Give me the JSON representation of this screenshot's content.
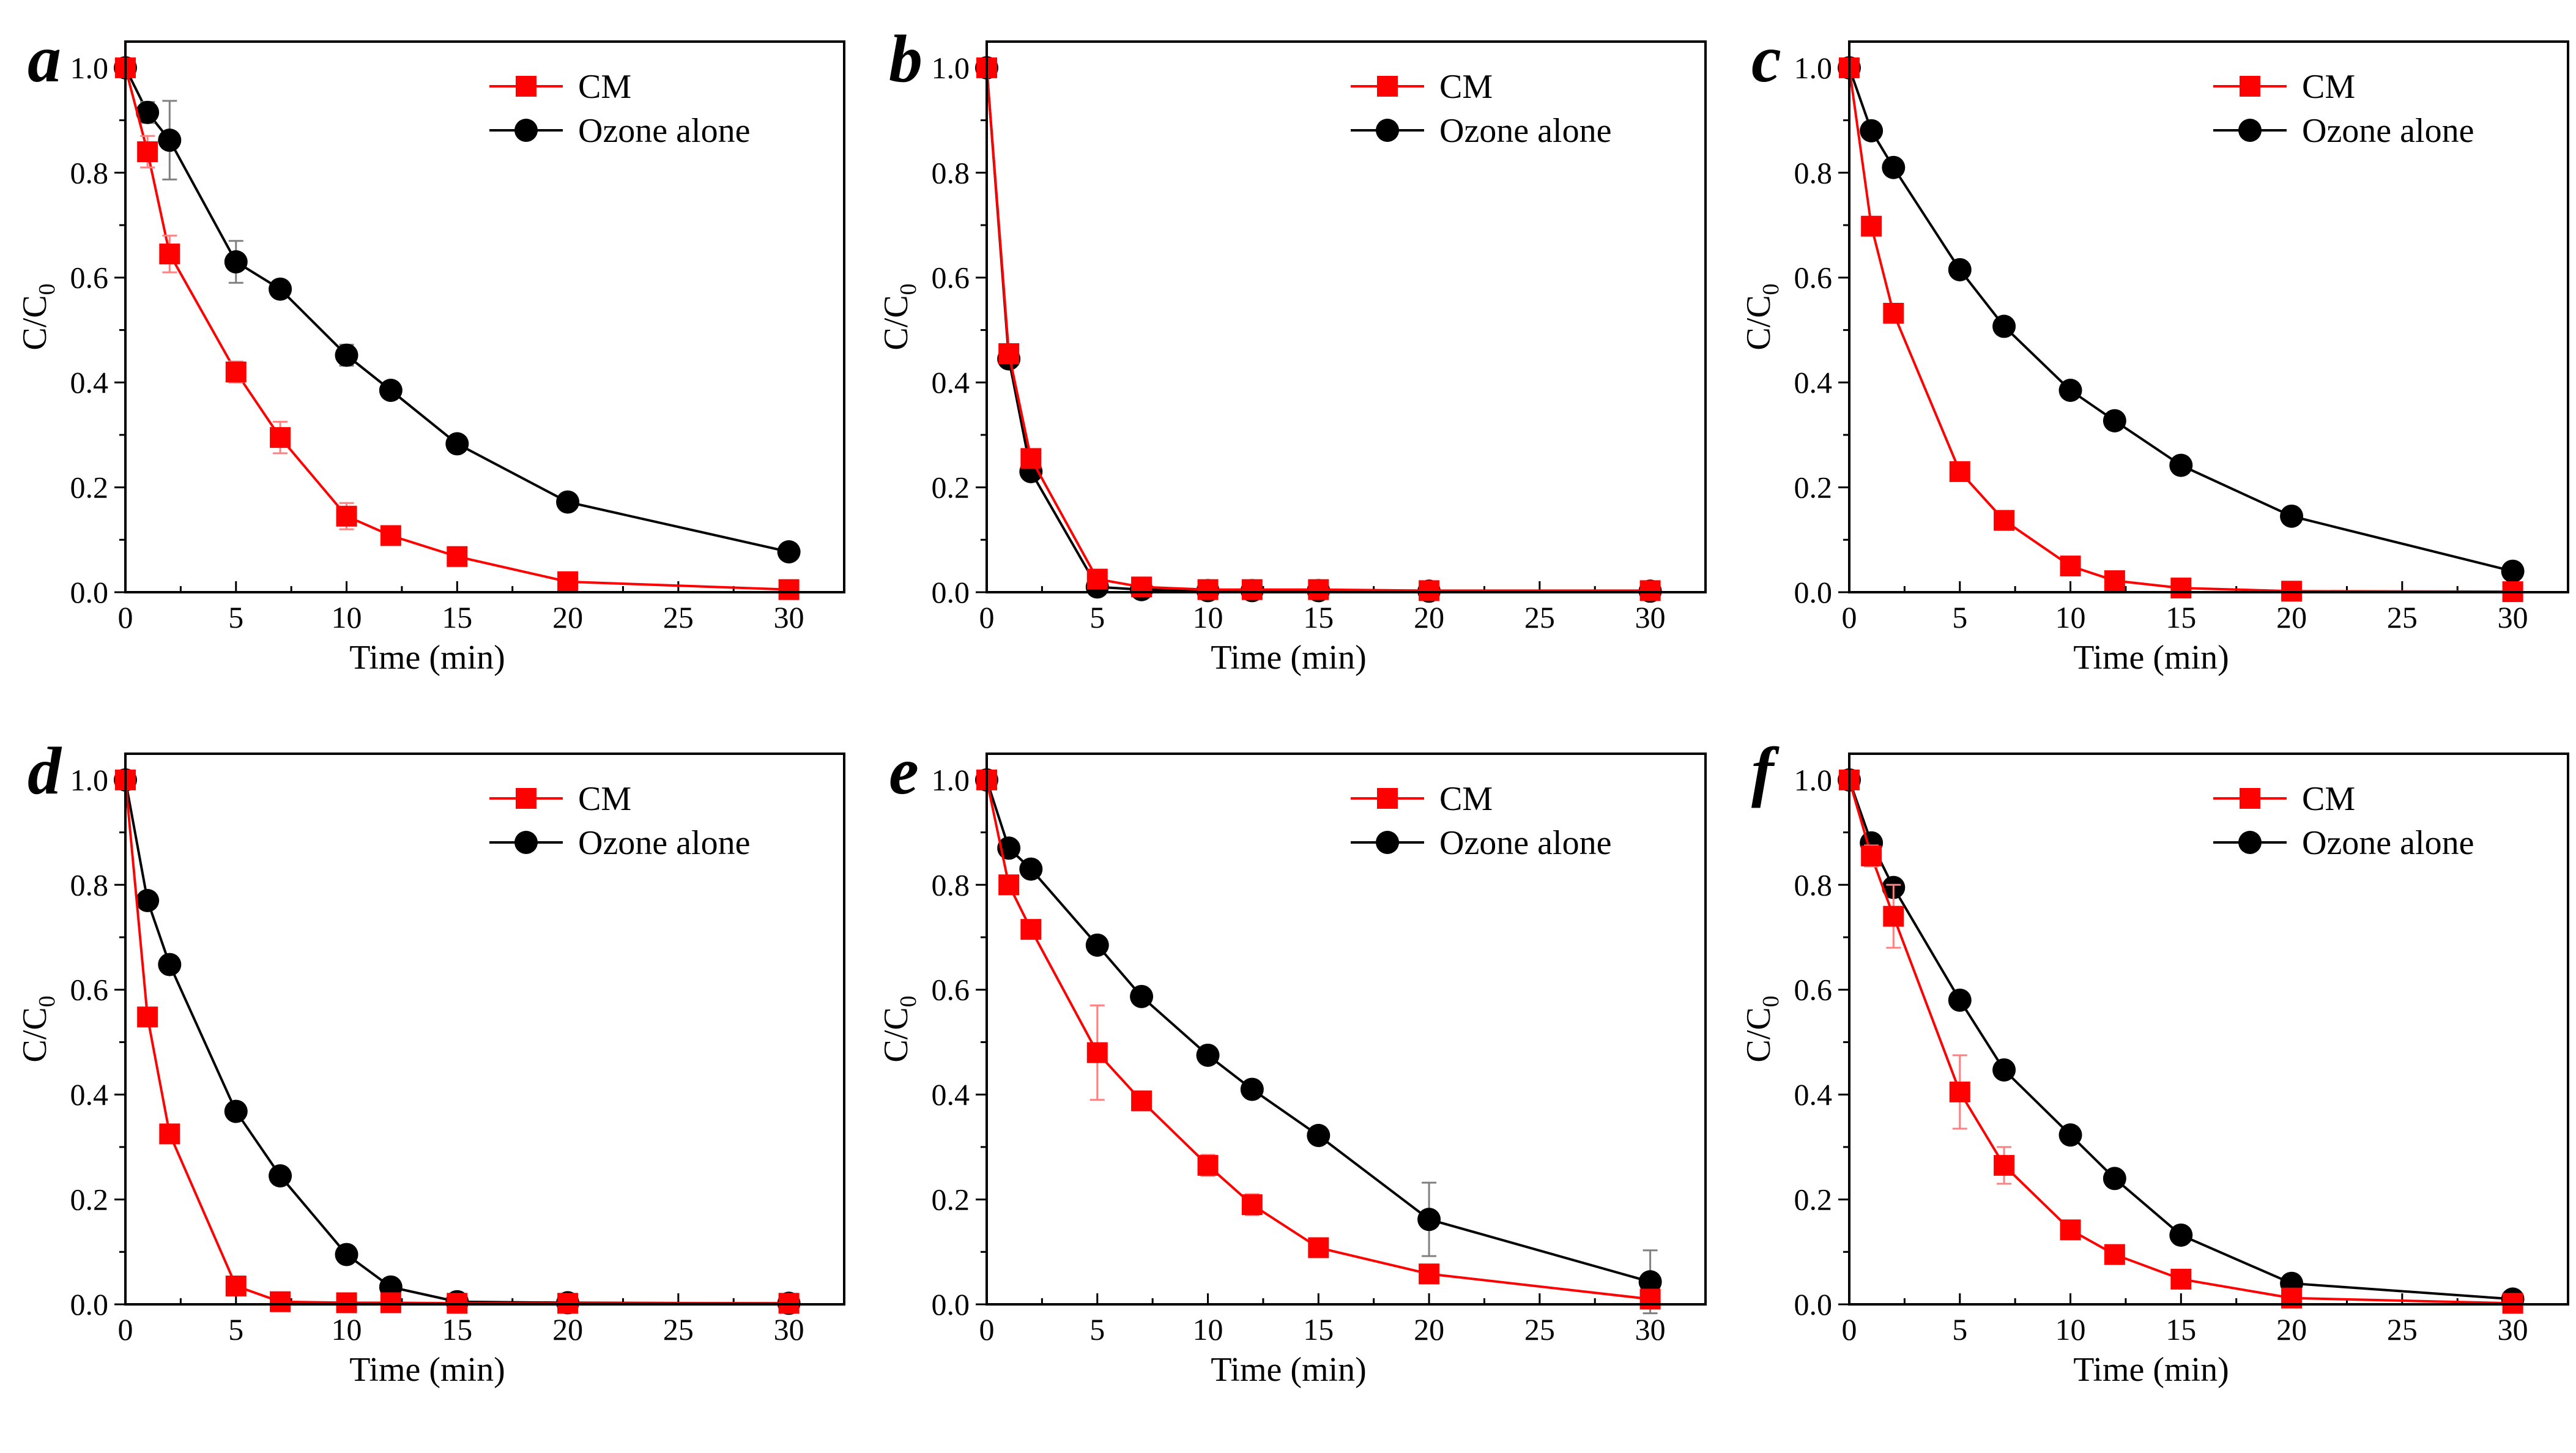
{
  "colors": {
    "cm": "#ff0000",
    "ozone": "#000000",
    "axis": "#000000",
    "error": "#ff8080"
  },
  "chart_data": [
    {
      "panel": "a",
      "type": "line",
      "xlabel": "Time (min)",
      "ylabel": "C/C0",
      "xlim": [
        0,
        32.5
      ],
      "ylim": [
        0,
        1.05
      ],
      "xticks": [
        "0",
        "5",
        "10",
        "15",
        "20",
        "25",
        "30"
      ],
      "yticks": [
        "0.0",
        "0.2",
        "0.4",
        "0.6",
        "0.8",
        "1.0"
      ],
      "legend": "top-right",
      "series": [
        {
          "name": "CM",
          "marker": "square",
          "x": [
            0,
            1,
            2,
            5,
            7,
            10,
            12,
            15,
            20,
            30
          ],
          "y": [
            1.0,
            0.84,
            0.645,
            0.42,
            0.295,
            0.145,
            0.108,
            0.068,
            0.02,
            0.005
          ],
          "err": [
            0,
            0.03,
            0.035,
            0.02,
            0.03,
            0.025,
            0,
            0,
            0,
            0
          ]
        },
        {
          "name": "Ozone alone",
          "marker": "circle",
          "x": [
            0,
            1,
            2,
            5,
            7,
            10,
            12,
            15,
            20,
            30
          ],
          "y": [
            1.0,
            0.915,
            0.862,
            0.63,
            0.578,
            0.452,
            0.385,
            0.283,
            0.172,
            0.077
          ],
          "err": [
            0,
            0.02,
            0.075,
            0.04,
            0,
            0.02,
            0,
            0,
            0,
            0
          ]
        }
      ]
    },
    {
      "panel": "b",
      "type": "line",
      "xlabel": "Time (min)",
      "ylabel": "C/C0",
      "xlim": [
        0,
        32.5
      ],
      "ylim": [
        0,
        1.05
      ],
      "xticks": [
        "0",
        "5",
        "10",
        "15",
        "20",
        "25",
        "30"
      ],
      "yticks": [
        "0.0",
        "0.2",
        "0.4",
        "0.6",
        "0.8",
        "1.0"
      ],
      "legend": "top-right",
      "series": [
        {
          "name": "CM",
          "marker": "square",
          "x": [
            0,
            1,
            2,
            5,
            7,
            10,
            12,
            15,
            20,
            30
          ],
          "y": [
            1.0,
            0.455,
            0.255,
            0.025,
            0.01,
            0.005,
            0.005,
            0.005,
            0.003,
            0.003
          ],
          "err": [
            0,
            0,
            0,
            0,
            0,
            0,
            0,
            0,
            0,
            0
          ]
        },
        {
          "name": "Ozone alone",
          "marker": "circle",
          "x": [
            0,
            1,
            2,
            5,
            7,
            10,
            12,
            15,
            20,
            30
          ],
          "y": [
            1.0,
            0.445,
            0.23,
            0.01,
            0.005,
            0.003,
            0.003,
            0.003,
            0.002,
            0.002
          ],
          "err": [
            0,
            0,
            0,
            0,
            0,
            0,
            0,
            0,
            0,
            0
          ]
        }
      ]
    },
    {
      "panel": "c",
      "type": "line",
      "xlabel": "Time (min)",
      "ylabel": "C/C0",
      "xlim": [
        0,
        32.5
      ],
      "ylim": [
        0,
        1.05
      ],
      "xticks": [
        "0",
        "5",
        "10",
        "15",
        "20",
        "25",
        "30"
      ],
      "yticks": [
        "0.0",
        "0.2",
        "0.4",
        "0.6",
        "0.8",
        "1.0"
      ],
      "legend": "top-right",
      "series": [
        {
          "name": "CM",
          "marker": "square",
          "x": [
            0,
            1,
            2,
            5,
            7,
            10,
            12,
            15,
            20,
            30
          ],
          "y": [
            1.0,
            0.698,
            0.532,
            0.23,
            0.137,
            0.05,
            0.022,
            0.008,
            0.002,
            0.001
          ],
          "err": [
            0,
            0,
            0,
            0,
            0,
            0,
            0,
            0,
            0,
            0
          ]
        },
        {
          "name": "Ozone alone",
          "marker": "circle",
          "x": [
            0,
            1,
            2,
            5,
            7,
            10,
            12,
            15,
            20,
            30
          ],
          "y": [
            1.0,
            0.88,
            0.81,
            0.615,
            0.507,
            0.385,
            0.327,
            0.242,
            0.145,
            0.04
          ],
          "err": [
            0,
            0,
            0,
            0,
            0,
            0,
            0,
            0,
            0,
            0
          ]
        }
      ]
    },
    {
      "panel": "d",
      "type": "line",
      "xlabel": "Time (min)",
      "ylabel": "C/C0",
      "xlim": [
        0,
        32.5
      ],
      "ylim": [
        0,
        1.05
      ],
      "xticks": [
        "0",
        "5",
        "10",
        "15",
        "20",
        "25",
        "30"
      ],
      "yticks": [
        "0.0",
        "0.2",
        "0.4",
        "0.6",
        "0.8",
        "1.0"
      ],
      "legend": "top-right",
      "series": [
        {
          "name": "CM",
          "marker": "square",
          "x": [
            0,
            1,
            2,
            5,
            7,
            10,
            12,
            15,
            20,
            30
          ],
          "y": [
            1.0,
            0.548,
            0.325,
            0.035,
            0.005,
            0.003,
            0.003,
            0.002,
            0.002,
            0.002
          ],
          "err": [
            0,
            0,
            0,
            0,
            0,
            0,
            0,
            0,
            0,
            0
          ]
        },
        {
          "name": "Ozone alone",
          "marker": "circle",
          "x": [
            0,
            1,
            2,
            5,
            7,
            10,
            12,
            15,
            20,
            30
          ],
          "y": [
            1.0,
            0.77,
            0.648,
            0.368,
            0.245,
            0.095,
            0.033,
            0.005,
            0.003,
            0.002
          ],
          "err": [
            0,
            0,
            0,
            0,
            0,
            0,
            0,
            0,
            0,
            0
          ]
        }
      ]
    },
    {
      "panel": "e",
      "type": "line",
      "xlabel": "Time (min)",
      "ylabel": "C/C0",
      "xlim": [
        0,
        32.5
      ],
      "ylim": [
        0,
        1.05
      ],
      "xticks": [
        "0",
        "5",
        "10",
        "15",
        "20",
        "25",
        "30"
      ],
      "yticks": [
        "0.0",
        "0.2",
        "0.4",
        "0.6",
        "0.8",
        "1.0"
      ],
      "legend": "top-right",
      "series": [
        {
          "name": "CM",
          "marker": "square",
          "x": [
            0,
            1,
            2,
            5,
            7,
            10,
            12,
            15,
            20,
            30
          ],
          "y": [
            1.0,
            0.8,
            0.715,
            0.48,
            0.388,
            0.265,
            0.19,
            0.108,
            0.058,
            0.01
          ],
          "err": [
            0,
            0,
            0,
            0.09,
            0,
            0.02,
            0.02,
            0,
            0,
            0
          ]
        },
        {
          "name": "Ozone alone",
          "marker": "circle",
          "x": [
            0,
            1,
            2,
            5,
            7,
            10,
            12,
            15,
            20,
            30
          ],
          "y": [
            1.0,
            0.87,
            0.83,
            0.685,
            0.587,
            0.475,
            0.41,
            0.322,
            0.162,
            0.043
          ],
          "err": [
            0,
            0,
            0,
            0,
            0,
            0,
            0,
            0,
            0.07,
            0.06
          ]
        }
      ]
    },
    {
      "panel": "f",
      "type": "line",
      "xlabel": "Time (min)",
      "ylabel": "C/C0",
      "xlim": [
        0,
        32.5
      ],
      "ylim": [
        0,
        1.05
      ],
      "xticks": [
        "0",
        "5",
        "10",
        "15",
        "20",
        "25",
        "30"
      ],
      "yticks": [
        "0.0",
        "0.2",
        "0.4",
        "0.6",
        "0.8",
        "1.0"
      ],
      "legend": "top-right",
      "series": [
        {
          "name": "CM",
          "marker": "square",
          "x": [
            0,
            1,
            2,
            5,
            7,
            10,
            12,
            15,
            20,
            30
          ],
          "y": [
            1.0,
            0.855,
            0.74,
            0.405,
            0.265,
            0.142,
            0.095,
            0.048,
            0.012,
            0.002
          ],
          "err": [
            0,
            0.02,
            0.06,
            0.07,
            0.035,
            0,
            0,
            0,
            0,
            0
          ]
        },
        {
          "name": "Ozone alone",
          "marker": "circle",
          "x": [
            0,
            1,
            2,
            5,
            7,
            10,
            12,
            15,
            20,
            30
          ],
          "y": [
            1.0,
            0.88,
            0.795,
            0.58,
            0.447,
            0.323,
            0.24,
            0.132,
            0.04,
            0.01
          ],
          "err": [
            0,
            0,
            0,
            0,
            0,
            0,
            0,
            0,
            0,
            0
          ]
        }
      ]
    }
  ]
}
